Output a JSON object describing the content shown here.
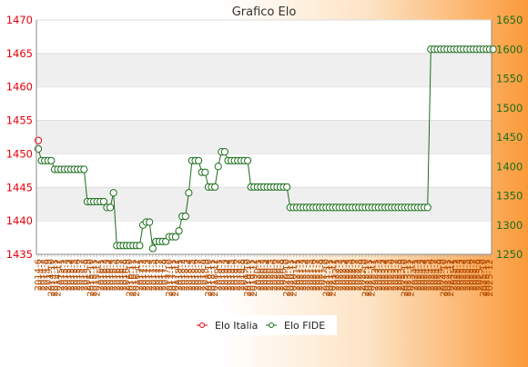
{
  "chart_data": {
    "type": "line",
    "title": "Grafico Elo",
    "xlabel": "",
    "ylabel": "",
    "y_left": {
      "ylim": [
        1435,
        1470
      ],
      "ticks": [
        1435,
        1440,
        1445,
        1450,
        1455,
        1460,
        1465,
        1470
      ]
    },
    "y_right": {
      "ylim": [
        1250,
        1650
      ],
      "ticks": [
        1250,
        1300,
        1350,
        1400,
        1450,
        1500,
        1550,
        1600,
        1650
      ]
    },
    "x_tick_labels": [
      "2014-6",
      "2014-7",
      "2014-8",
      "2014-9",
      "2014-10",
      "2014-11",
      "2014-12",
      "2015-1",
      "2015-2",
      "2015-3",
      "2015-4",
      "2015-5",
      "2015-6",
      "2015-7",
      "2015-8",
      "2015-9",
      "2015-10",
      "2015-11",
      "2015-12",
      "2016-1",
      "2016-2",
      "2016-3",
      "2016-4",
      "2016-5",
      "2016-6",
      "2016-7",
      "2016-8",
      "2016-9",
      "2016-10",
      "2016-11",
      "2016-12",
      "2017-1",
      "2017-2",
      "2017-3",
      "2017-4",
      "2017-5",
      "2017-6",
      "2017-7",
      "2017-8",
      "2017-9",
      "2017-10",
      "2017-11",
      "2017-12",
      "2018-1",
      "2018-2",
      "2018-3",
      "2018-4",
      "2018-5",
      "2018-6",
      "2018-7",
      "2018-8",
      "2018-9",
      "2018-10",
      "2018-11",
      "2018-12",
      "2019-1",
      "2019-2",
      "2019-3",
      "2019-4",
      "2019-5",
      "2019-6",
      "2019-7",
      "2019-8",
      "2019-9",
      "2019-10",
      "2019-11",
      "2019-12",
      "2020-1",
      "2020-2",
      "2020-3",
      "2020-4",
      "2020-5",
      "2020-6",
      "2020-7",
      "2020-8",
      "2020-9",
      "2020-10",
      "2020-11",
      "2020-12",
      "2021-1",
      "2021-2",
      "2021-3",
      "2021-4",
      "2021-5",
      "2021-6",
      "2021-7",
      "2021-8",
      "2021-9",
      "2021-10",
      "2021-11",
      "2021-12",
      "2022-1",
      "2022-2",
      "2022-3",
      "2022-4",
      "2022-5",
      "2022-6",
      "2022-7",
      "2022-8",
      "2022-9",
      "2022-10",
      "2022-11",
      "2022-12",
      "2023-1",
      "2023-2",
      "2023-3",
      "2023-4",
      "2023-5",
      "2023-6",
      "2023-7",
      "2023-8",
      "2023-9",
      "2023-10",
      "2023-11",
      "2023-12",
      "2024-1",
      "2024-2",
      "2024-3",
      "2024-4",
      "2024-5",
      "2024-6",
      "2024-7",
      "2024-8",
      "2024-9",
      "2024-10",
      "2024-11",
      "2024-12",
      "2025-1",
      "2025-2",
      "2025-3",
      "2025-4",
      "2025-5",
      "2025-6",
      "2025-7",
      "2025-8",
      "2025-9",
      "2025-10",
      "2025-11",
      "2025-12"
    ],
    "legend": {
      "position": "bottom",
      "entries": [
        "Elo Italia",
        "Elo FIDE"
      ]
    },
    "grid": "horizontal bands",
    "colors": {
      "elo_italia": "#e8000b",
      "elo_fide": "#1a6e1a",
      "title_bar": "#fb9a3a"
    },
    "series": [
      {
        "name": "Elo Italia",
        "axis": "left",
        "x_index": [
          0
        ],
        "values": [
          1452
        ]
      },
      {
        "name": "Elo FIDE",
        "axis": "right",
        "values": [
          1430,
          1410,
          1410,
          1410,
          1410,
          1395,
          1395,
          1395,
          1395,
          1395,
          1395,
          1395,
          1395,
          1395,
          1395,
          1340,
          1340,
          1340,
          1340,
          1340,
          1340,
          1330,
          1330,
          1355,
          1265,
          1265,
          1265,
          1265,
          1265,
          1265,
          1265,
          1265,
          1300,
          1305,
          1305,
          1260,
          1272,
          1272,
          1272,
          1272,
          1280,
          1280,
          1280,
          1290,
          1315,
          1315,
          1355,
          1410,
          1410,
          1410,
          1390,
          1390,
          1365,
          1365,
          1365,
          1400,
          1425,
          1425,
          1410,
          1410,
          1410,
          1410,
          1410,
          1410,
          1410,
          1365,
          1365,
          1365,
          1365,
          1365,
          1365,
          1365,
          1365,
          1365,
          1365,
          1365,
          1365,
          1330,
          1330,
          1330,
          1330,
          1330,
          1330,
          1330,
          1330,
          1330,
          1330,
          1330,
          1330,
          1330,
          1330,
          1330,
          1330,
          1330,
          1330,
          1330,
          1330,
          1330,
          1330,
          1330,
          1330,
          1330,
          1330,
          1330,
          1330,
          1330,
          1330,
          1330,
          1330,
          1330,
          1330,
          1330,
          1330,
          1330,
          1330,
          1330,
          1330,
          1330,
          1330,
          1330,
          1600,
          1600,
          1600,
          1600,
          1600,
          1600,
          1600,
          1600,
          1600,
          1600,
          1600,
          1600,
          1600,
          1600,
          1600,
          1600,
          1600,
          1600,
          1600,
          1600
        ]
      }
    ]
  }
}
